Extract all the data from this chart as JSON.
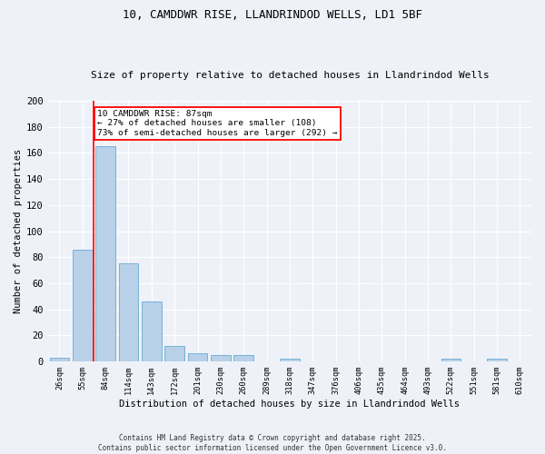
{
  "title1": "10, CAMDDWR RISE, LLANDRINDOD WELLS, LD1 5BF",
  "title2": "Size of property relative to detached houses in Llandrindod Wells",
  "xlabel": "Distribution of detached houses by size in Llandrindod Wells",
  "ylabel": "Number of detached properties",
  "categories": [
    "26sqm",
    "55sqm",
    "84sqm",
    "114sqm",
    "143sqm",
    "172sqm",
    "201sqm",
    "230sqm",
    "260sqm",
    "289sqm",
    "318sqm",
    "347sqm",
    "376sqm",
    "406sqm",
    "435sqm",
    "464sqm",
    "493sqm",
    "522sqm",
    "551sqm",
    "581sqm",
    "610sqm"
  ],
  "values": [
    3,
    86,
    165,
    75,
    46,
    12,
    6,
    5,
    5,
    0,
    2,
    0,
    0,
    0,
    0,
    0,
    0,
    2,
    0,
    2,
    0
  ],
  "bar_color": "#b8d0e8",
  "bar_edge_color": "#6aaad4",
  "property_line_idx": 2,
  "annotation_text_line1": "10 CAMDDWR RISE: 87sqm",
  "annotation_text_line2": "← 27% of detached houses are smaller (108)",
  "annotation_text_line3": "73% of semi-detached houses are larger (292) →",
  "footer1": "Contains HM Land Registry data © Crown copyright and database right 2025.",
  "footer2": "Contains public sector information licensed under the Open Government Licence v3.0.",
  "ylim_max": 200,
  "bg_color": "#eef2f8",
  "grid_color": "#ffffff"
}
